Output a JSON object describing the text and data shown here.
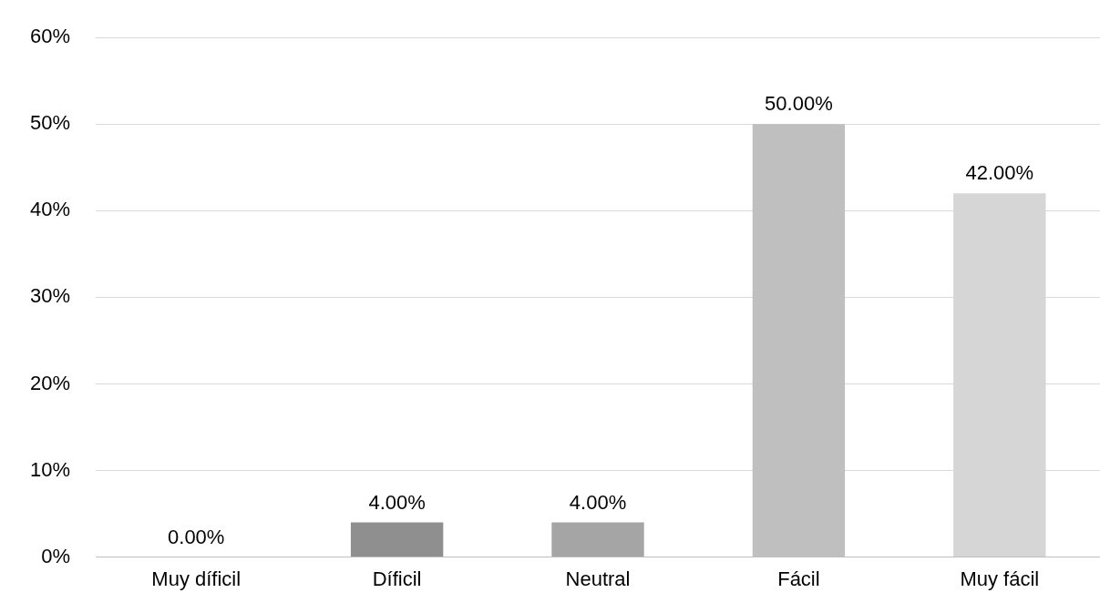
{
  "chart_data": {
    "type": "bar",
    "categories": [
      "Muy díficil",
      "Díficil",
      "Neutral",
      "Fácil",
      "Muy fácil"
    ],
    "values": [
      0,
      4,
      4,
      50,
      42
    ],
    "colors": [
      "#7f7f7f",
      "#8f8f8f",
      "#a5a5a5",
      "#bfbfbf",
      "#d6d6d6"
    ],
    "value_labels": [
      "0.00%",
      "4.00%",
      "4.00%",
      "50.00%",
      "42.00%"
    ],
    "ylim": [
      0,
      60
    ],
    "yticks": [
      {
        "value": 0,
        "label": "0%"
      },
      {
        "value": 10,
        "label": "10%"
      },
      {
        "value": 20,
        "label": "20%"
      },
      {
        "value": 30,
        "label": "30%"
      },
      {
        "value": 40,
        "label": "40%"
      },
      {
        "value": 50,
        "label": "50%"
      },
      {
        "value": 60,
        "label": "60%"
      }
    ],
    "grid": "y",
    "legend": false
  }
}
